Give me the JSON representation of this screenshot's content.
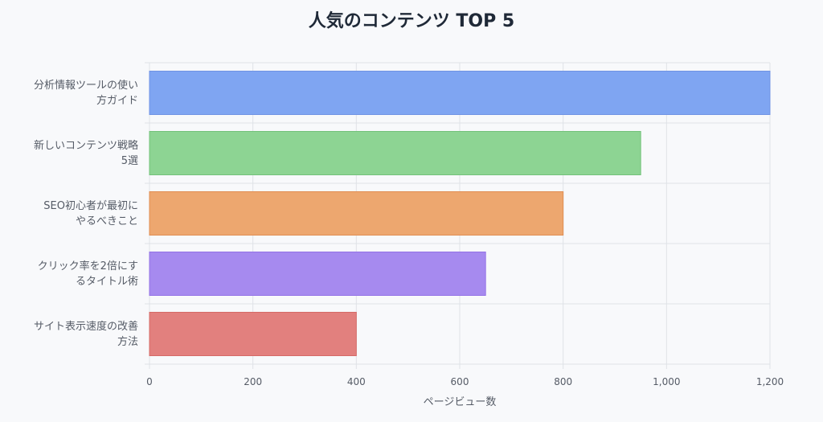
{
  "chart_data": {
    "type": "bar",
    "orientation": "horizontal",
    "title": "人気のコンテンツ TOP 5",
    "xlabel": "ページビュー数",
    "ylabel": "",
    "categories": [
      [
        "分析情報ツールの使い",
        "方ガイド"
      ],
      [
        "新しいコンテンツ戦略",
        "5選"
      ],
      [
        "SEO初心者が最初に",
        "やるべきこと"
      ],
      [
        "クリック率を2倍にす",
        "るタイトル術"
      ],
      [
        "サイト表示速度の改善",
        "方法"
      ]
    ],
    "values": [
      1200,
      950,
      800,
      650,
      400
    ],
    "xlim": [
      0,
      1200
    ],
    "ticks": [
      0,
      200,
      400,
      600,
      800,
      1000,
      1200
    ],
    "tick_labels": [
      "0",
      "200",
      "400",
      "600",
      "800",
      "1,000",
      "1,200"
    ],
    "grid": true,
    "legend": "none",
    "colors": {
      "bar_fills": [
        "#7fa5f2",
        "#8dd493",
        "#eda76f",
        "#a68aef",
        "#e2807e"
      ],
      "bar_strokes": [
        "#6f93e4",
        "#72c27a",
        "#e08d52",
        "#9372e6",
        "#d56a67"
      ],
      "grid": "#dfe2e7",
      "text": "#555b66",
      "title": "#1f2937"
    }
  }
}
